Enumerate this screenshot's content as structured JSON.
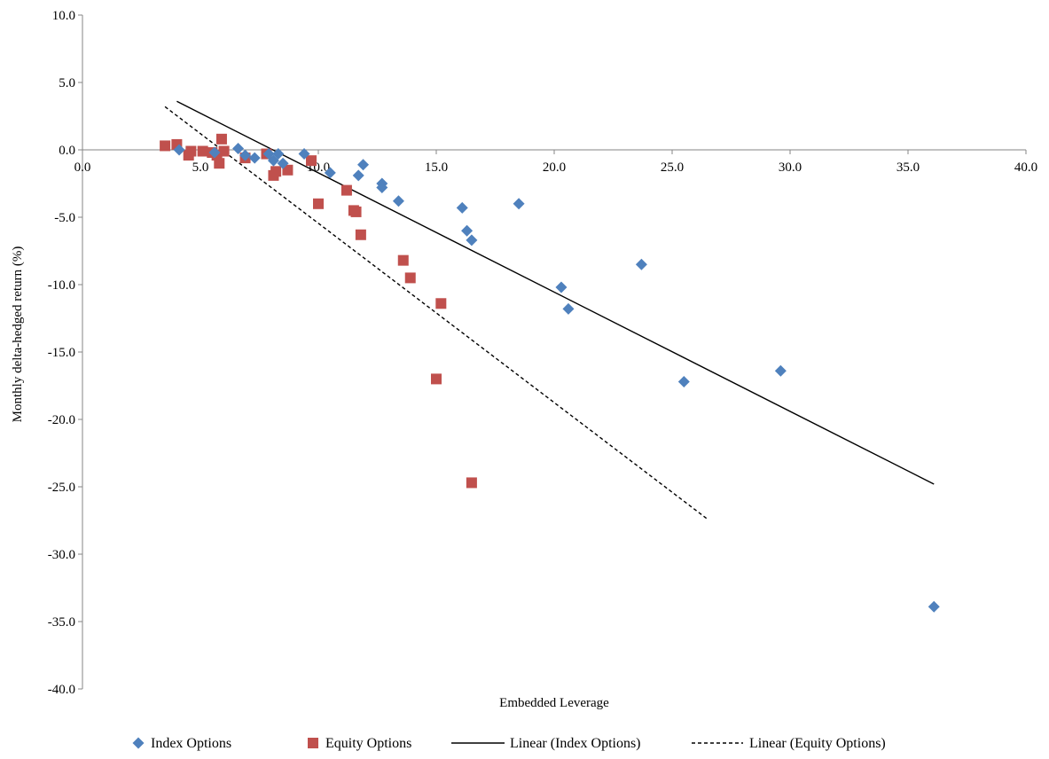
{
  "chart_data": {
    "type": "scatter",
    "title": "",
    "xlabel": "Embedded Leverage",
    "ylabel": "Monthly delta-hedged return (%)",
    "xlim": [
      0,
      40
    ],
    "ylim": [
      -40,
      10
    ],
    "x_ticks": [
      "0.0",
      "5.0",
      "10.0",
      "15.0",
      "20.0",
      "25.0",
      "30.0",
      "35.0",
      "40.0"
    ],
    "y_ticks": [
      "10.0",
      "5.0",
      "0.0",
      "-5.0",
      "-10.0",
      "-15.0",
      "-20.0",
      "-25.0",
      "-30.0",
      "-35.0",
      "-40.0"
    ],
    "grid": false,
    "legend_position": "bottom",
    "series": [
      {
        "name": "Index Options",
        "marker": "diamond",
        "color": "#4F81BD",
        "points": [
          [
            4.1,
            0.0
          ],
          [
            5.6,
            -0.2
          ],
          [
            6.6,
            0.1
          ],
          [
            6.9,
            -0.4
          ],
          [
            7.3,
            -0.6
          ],
          [
            7.9,
            -0.3
          ],
          [
            8.1,
            -0.8
          ],
          [
            8.3,
            -0.3
          ],
          [
            8.5,
            -1.0
          ],
          [
            9.4,
            -0.3
          ],
          [
            10.5,
            -1.7
          ],
          [
            11.7,
            -1.9
          ],
          [
            11.9,
            -1.1
          ],
          [
            12.7,
            -2.5
          ],
          [
            12.7,
            -2.8
          ],
          [
            13.4,
            -3.8
          ],
          [
            16.1,
            -4.3
          ],
          [
            16.3,
            -6.0
          ],
          [
            16.5,
            -6.7
          ],
          [
            18.5,
            -4.0
          ],
          [
            20.3,
            -10.2
          ],
          [
            20.6,
            -11.8
          ],
          [
            23.7,
            -8.5
          ],
          [
            25.5,
            -17.2
          ],
          [
            29.6,
            -16.4
          ],
          [
            36.1,
            -33.9
          ]
        ]
      },
      {
        "name": "Equity Options",
        "marker": "square",
        "color": "#C0504D",
        "points": [
          [
            3.5,
            0.3
          ],
          [
            4.0,
            0.4
          ],
          [
            4.5,
            -0.4
          ],
          [
            4.6,
            -0.1
          ],
          [
            5.1,
            -0.1
          ],
          [
            5.5,
            -0.2
          ],
          [
            5.7,
            -0.4
          ],
          [
            5.8,
            -1.0
          ],
          [
            5.9,
            0.8
          ],
          [
            6.0,
            -0.1
          ],
          [
            6.9,
            -0.6
          ],
          [
            7.8,
            -0.3
          ],
          [
            8.1,
            -1.9
          ],
          [
            8.2,
            -1.6
          ],
          [
            8.7,
            -1.5
          ],
          [
            9.7,
            -0.8
          ],
          [
            10.0,
            -4.0
          ],
          [
            11.2,
            -3.0
          ],
          [
            11.5,
            -4.5
          ],
          [
            11.6,
            -4.6
          ],
          [
            11.8,
            -6.3
          ],
          [
            13.6,
            -8.2
          ],
          [
            13.9,
            -9.5
          ],
          [
            15.0,
            -17.0
          ],
          [
            15.2,
            -11.4
          ],
          [
            16.5,
            -24.7
          ]
        ]
      }
    ],
    "trendlines": [
      {
        "name": "Linear (Index Options)",
        "style": "solid",
        "color": "#000000",
        "x": [
          4.0,
          36.1
        ],
        "y": [
          3.6,
          -24.8
        ]
      },
      {
        "name": "Linear (Equity Options)",
        "style": "dashed",
        "color": "#000000",
        "x": [
          3.5,
          26.5
        ],
        "y": [
          3.2,
          -27.4
        ]
      }
    ]
  }
}
